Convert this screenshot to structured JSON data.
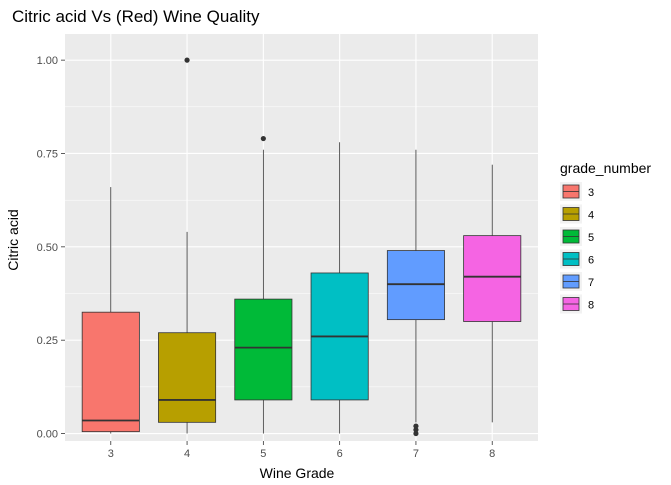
{
  "chart_data": {
    "type": "boxplot",
    "title": "Citric acid Vs (Red) Wine Quality",
    "xlabel": "Wine Grade",
    "ylabel": "Citric acid",
    "categories": [
      "3",
      "4",
      "5",
      "6",
      "7",
      "8"
    ],
    "ylim": [
      -0.02,
      1.07
    ],
    "yticks": [
      "0.00",
      "0.25",
      "0.50",
      "0.75",
      "1.00"
    ],
    "ytick_values": [
      0,
      0.25,
      0.5,
      0.75,
      1.0
    ],
    "grid": true,
    "legend": {
      "title": "grade_number",
      "position": "right",
      "labels": [
        "3",
        "4",
        "5",
        "6",
        "7",
        "8"
      ]
    },
    "colors": [
      "#F8766D",
      "#B79F00",
      "#00BA38",
      "#00BFC4",
      "#619CFF",
      "#F564E3"
    ],
    "boxes": [
      {
        "category": "3",
        "min": 0.0,
        "q1": 0.005,
        "median": 0.035,
        "q3": 0.325,
        "max": 0.66,
        "outliers": []
      },
      {
        "category": "4",
        "min": 0.0,
        "q1": 0.03,
        "median": 0.09,
        "q3": 0.27,
        "max": 0.54,
        "outliers": [
          1.0
        ]
      },
      {
        "category": "5",
        "min": 0.0,
        "q1": 0.09,
        "median": 0.23,
        "q3": 0.36,
        "max": 0.76,
        "outliers": [
          0.79
        ]
      },
      {
        "category": "6",
        "min": 0.0,
        "q1": 0.09,
        "median": 0.26,
        "q3": 0.43,
        "max": 0.78,
        "outliers": []
      },
      {
        "category": "7",
        "min": 0.03,
        "q1": 0.305,
        "median": 0.4,
        "q3": 0.49,
        "max": 0.76,
        "outliers": [
          0.0,
          0.01,
          0.02
        ]
      },
      {
        "category": "8",
        "min": 0.03,
        "q1": 0.3,
        "median": 0.42,
        "q3": 0.53,
        "max": 0.72,
        "outliers": []
      }
    ]
  }
}
